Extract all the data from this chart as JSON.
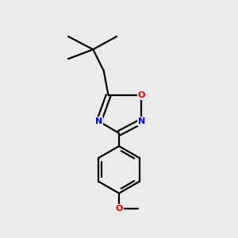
{
  "bg_color": "#ebebeb",
  "bond_color": "#000000",
  "N_color": "#0000ee",
  "O_color": "#ee0000",
  "line_width": 1.6,
  "figsize": [
    3.0,
    3.0
  ],
  "dpi": 100,
  "xlim": [
    0,
    10
  ],
  "ylim": [
    0,
    10
  ]
}
